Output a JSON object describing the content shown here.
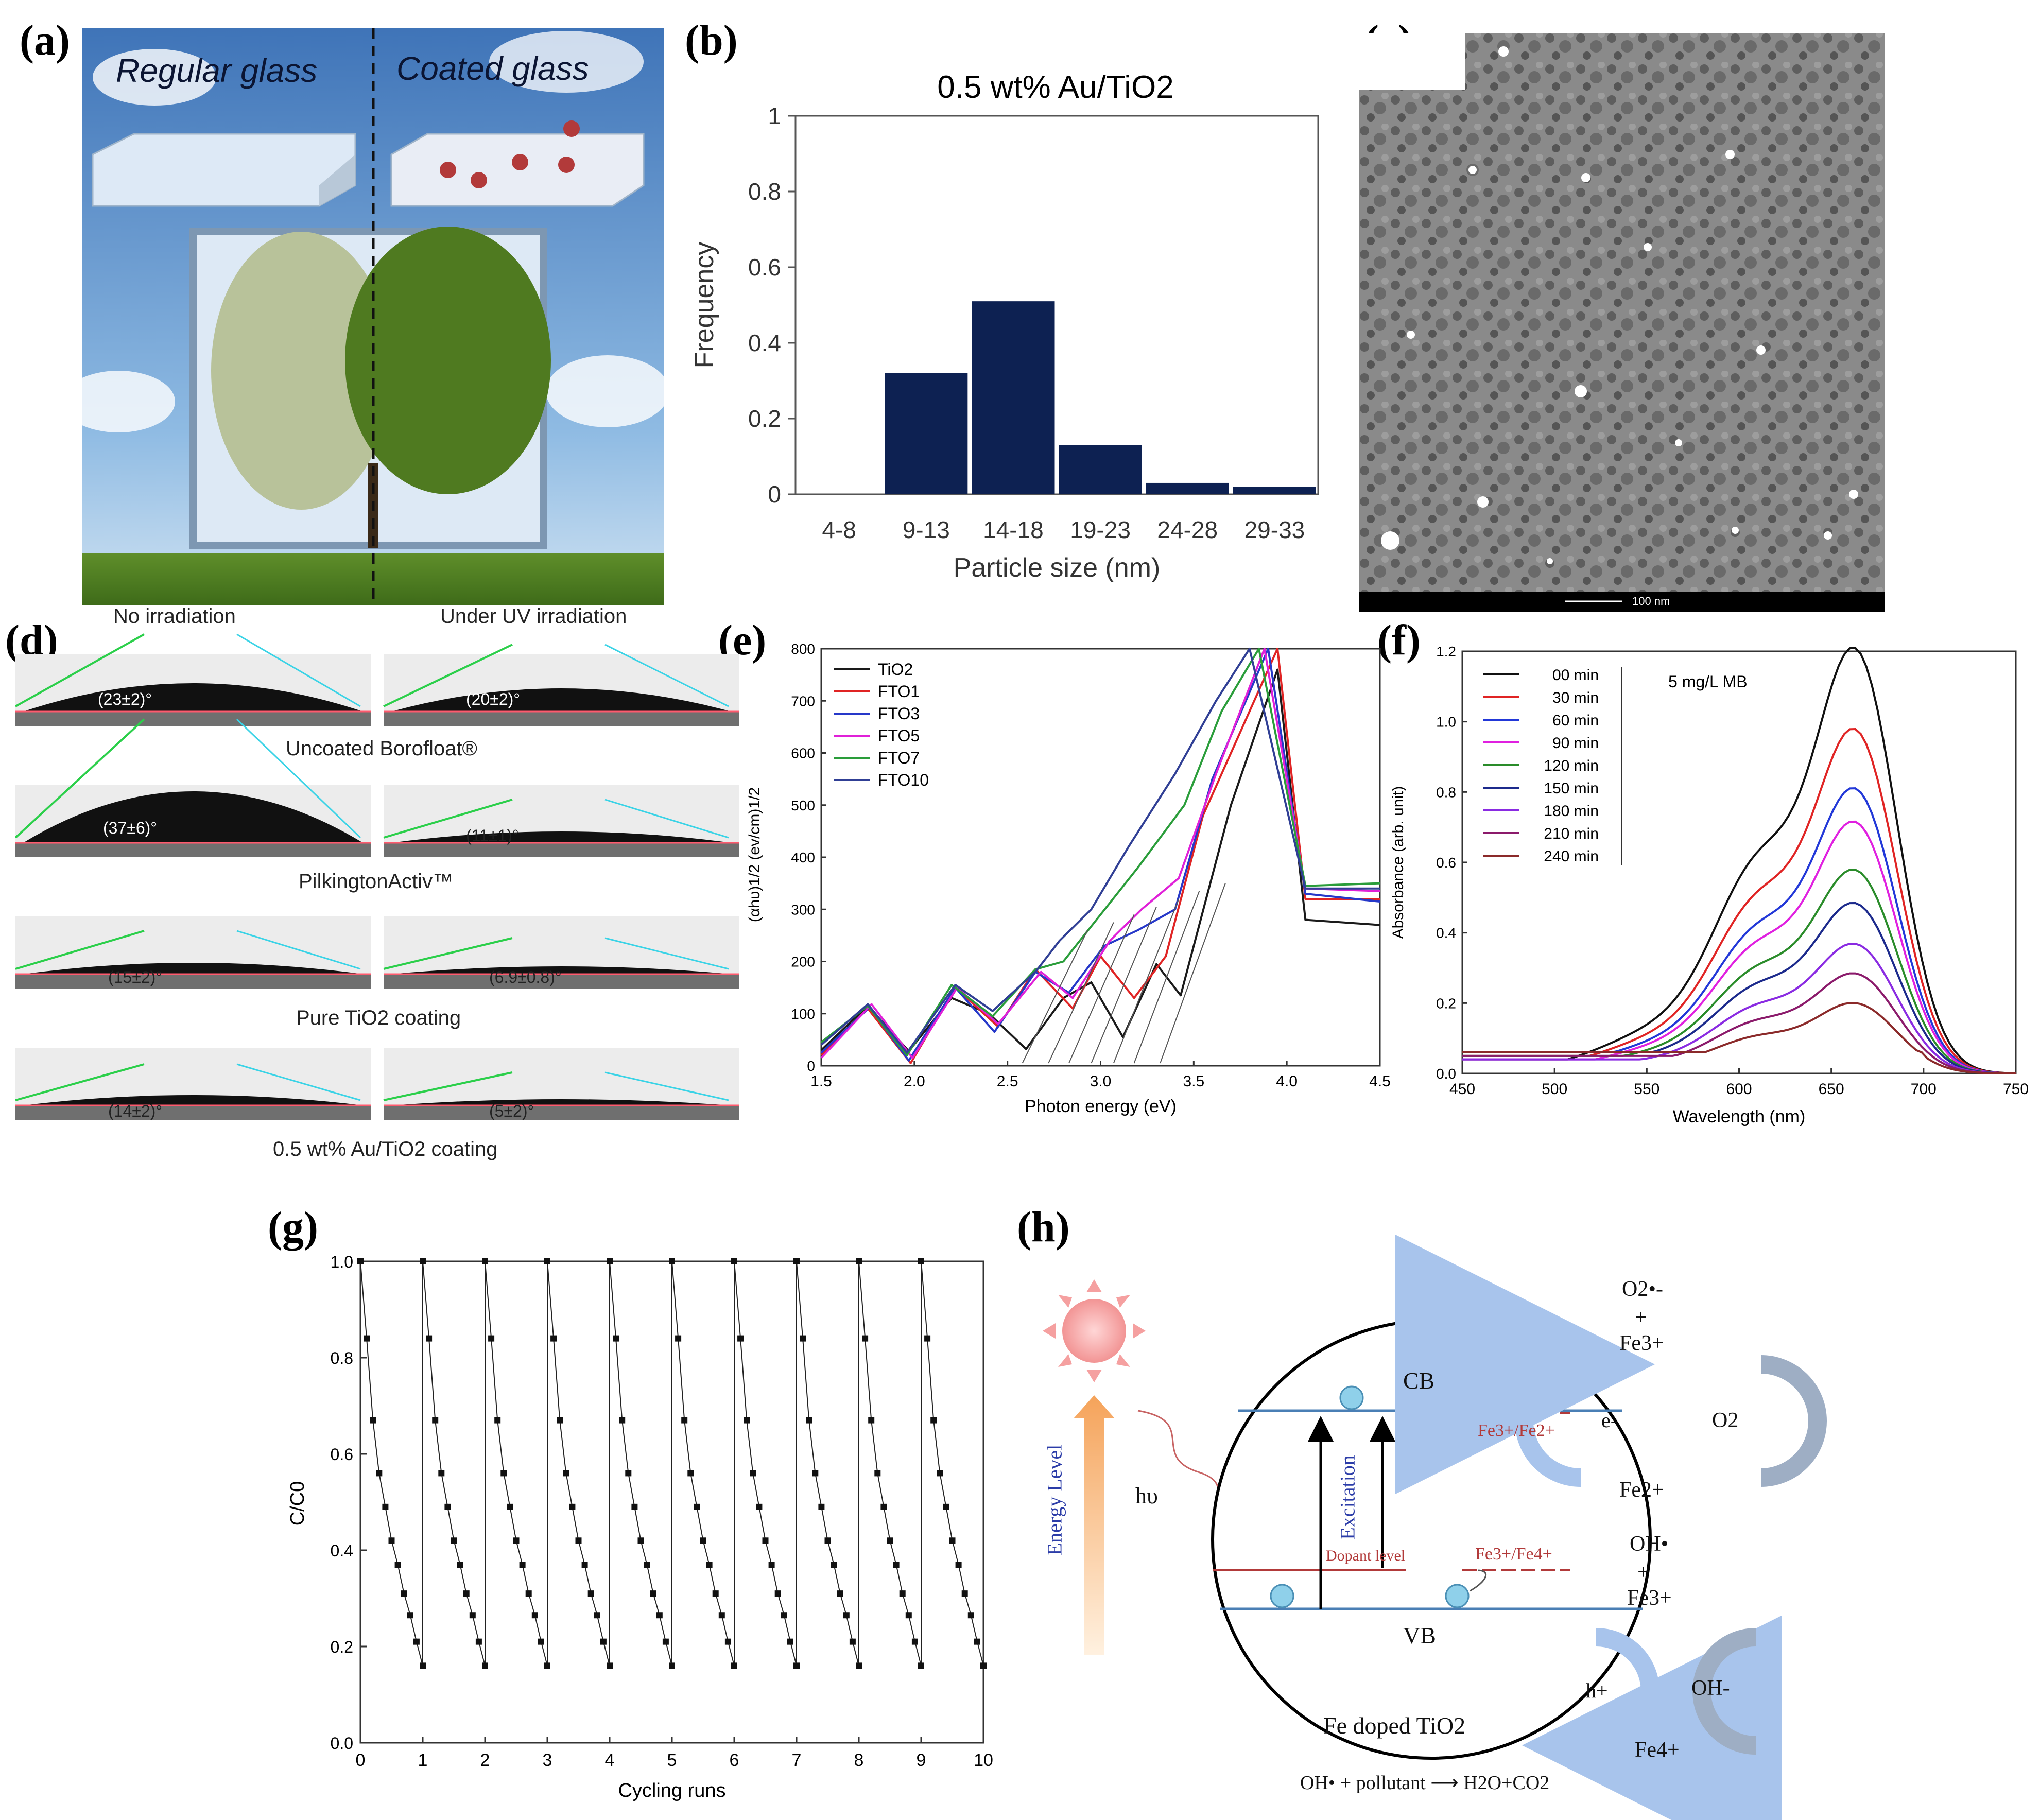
{
  "panels": {
    "a": "(a)",
    "b": "(b)",
    "c": "(c)",
    "d": "(d)",
    "e": "(e)",
    "f": "(f)",
    "g": "(g)",
    "h": "(h)"
  },
  "panel_a": {
    "left_title": "Regular glass",
    "right_title": "Coated glass"
  },
  "panel_c": {
    "scale_label": "100 nm"
  },
  "panel_d": {
    "col_no": "No irradiation",
    "col_uv": "Under UV irradiation",
    "rows": [
      {
        "label": "Uncoated Borofloat®",
        "no": "(23±2)°",
        "uv": "(20±2)°"
      },
      {
        "label": "PilkingtonActiv™",
        "no": "(37±6)°",
        "uv": "(11±1)°"
      },
      {
        "label": "Pure TiO2 coating",
        "no": "(15±2)°",
        "uv": "(6.9±0.8)°"
      },
      {
        "label": "0.5 wt% Au/TiO2 coating",
        "no": "(14±2)°",
        "uv": "(5±2)°"
      }
    ]
  },
  "panel_h": {
    "cb": "CB",
    "vb": "VB",
    "caption": "Fe doped TiO2",
    "equation": "OH• + pollutant ⟶ H2O+CO2",
    "energy": "Energy Level",
    "hv": "hυ",
    "excitation": "Excitation",
    "dopant": "Dopant level",
    "fe32": "Fe3+/Fe2+",
    "fe34": "Fe3+/Fe4+",
    "eminus": "e-",
    "hplus": "h+",
    "o2rad": "O2•-",
    "plus": "+",
    "fe3": "Fe3+",
    "fe2": "Fe2+",
    "fe4": "Fe4+",
    "o2": "O2",
    "ohrad": "OH•",
    "ohminus": "OH-"
  },
  "chart_data": [
    {
      "id": "b",
      "type": "bar",
      "title": "0.5 wt% Au/TiO2",
      "xlabel": "Particle size (nm)",
      "ylabel": "Frequency",
      "categories": [
        "4-8",
        "9-13",
        "14-18",
        "19-23",
        "24-28",
        "29-33"
      ],
      "values": [
        0,
        0.32,
        0.51,
        0.13,
        0.03,
        0.02
      ],
      "ylim": [
        0,
        1
      ],
      "yticks": [
        "0",
        "0.2",
        "0.4",
        "0.6",
        "0.8",
        "1"
      ],
      "color": "#0d2152"
    },
    {
      "id": "e",
      "type": "line",
      "xlabel": "Photon energy (eV)",
      "ylabel": "(αhυ)1/2 (ev/cm)1/2",
      "xlim": [
        1.5,
        4.5
      ],
      "ylim": [
        0,
        800
      ],
      "xticks": [
        "1.5",
        "2.0",
        "2.5",
        "3.0",
        "3.5",
        "4.0",
        "4.5"
      ],
      "yticks": [
        "0",
        "100",
        "200",
        "300",
        "400",
        "500",
        "600",
        "700",
        "800"
      ],
      "series": [
        {
          "name": "TiO2",
          "color": "#1a1a1a",
          "points": [
            [
              1.5,
              30
            ],
            [
              1.75,
              115
            ],
            [
              1.97,
              28
            ],
            [
              2.2,
              130
            ],
            [
              2.4,
              100
            ],
            [
              2.6,
              32
            ],
            [
              2.8,
              130
            ],
            [
              2.95,
              160
            ],
            [
              3.12,
              55
            ],
            [
              3.3,
              195
            ],
            [
              3.43,
              135
            ],
            [
              3.7,
              500
            ],
            [
              3.95,
              760
            ],
            [
              4.1,
              280
            ],
            [
              4.5,
              270
            ]
          ]
        },
        {
          "name": "FTO1",
          "color": "#e02424",
          "points": [
            [
              1.5,
              20
            ],
            [
              1.75,
              110
            ],
            [
              1.98,
              5
            ],
            [
              2.22,
              150
            ],
            [
              2.45,
              75
            ],
            [
              2.65,
              185
            ],
            [
              2.85,
              110
            ],
            [
              3.0,
              210
            ],
            [
              3.18,
              130
            ],
            [
              3.35,
              210
            ],
            [
              3.55,
              480
            ],
            [
              3.95,
              800
            ],
            [
              4.1,
              320
            ],
            [
              4.5,
              320
            ]
          ]
        },
        {
          "name": "FTO3",
          "color": "#2638c9",
          "points": [
            [
              1.5,
              25
            ],
            [
              1.76,
              112
            ],
            [
              1.97,
              10
            ],
            [
              2.22,
              150
            ],
            [
              2.43,
              65
            ],
            [
              2.65,
              180
            ],
            [
              2.83,
              140
            ],
            [
              3.02,
              230
            ],
            [
              3.2,
              260
            ],
            [
              3.4,
              300
            ],
            [
              3.6,
              550
            ],
            [
              3.9,
              800
            ],
            [
              4.1,
              330
            ],
            [
              4.5,
              315
            ]
          ]
        },
        {
          "name": "FTO5",
          "color": "#e020d8",
          "points": [
            [
              1.5,
              15
            ],
            [
              1.77,
              118
            ],
            [
              1.99,
              15
            ],
            [
              2.23,
              150
            ],
            [
              2.45,
              80
            ],
            [
              2.68,
              180
            ],
            [
              2.85,
              130
            ],
            [
              3.05,
              240
            ],
            [
              3.22,
              300
            ],
            [
              3.42,
              360
            ],
            [
              3.62,
              560
            ],
            [
              3.88,
              800
            ],
            [
              4.1,
              340
            ],
            [
              4.5,
              335
            ]
          ]
        },
        {
          "name": "FTO7",
          "color": "#2a9d3a",
          "points": [
            [
              1.5,
              45
            ],
            [
              1.75,
              115
            ],
            [
              1.96,
              20
            ],
            [
              2.2,
              155
            ],
            [
              2.42,
              95
            ],
            [
              2.65,
              185
            ],
            [
              2.8,
              200
            ],
            [
              3.0,
              290
            ],
            [
              3.2,
              380
            ],
            [
              3.45,
              500
            ],
            [
              3.65,
              680
            ],
            [
              3.85,
              800
            ],
            [
              4.1,
              345
            ],
            [
              4.5,
              350
            ]
          ]
        },
        {
          "name": "FTO10",
          "color": "#303f95",
          "points": [
            [
              1.5,
              40
            ],
            [
              1.75,
              118
            ],
            [
              1.96,
              25
            ],
            [
              2.22,
              155
            ],
            [
              2.42,
              105
            ],
            [
              2.65,
              180
            ],
            [
              2.78,
              240
            ],
            [
              2.95,
              300
            ],
            [
              3.15,
              420
            ],
            [
              3.4,
              560
            ],
            [
              3.62,
              700
            ],
            [
              3.8,
              800
            ],
            [
              4.1,
              340
            ],
            [
              4.5,
              340
            ]
          ]
        }
      ]
    },
    {
      "id": "f",
      "type": "line",
      "xlabel": "Wavelength (nm)",
      "ylabel": "Absorbance (arb. unit)",
      "annotation": "5 mg/L MB",
      "xlim": [
        450,
        750
      ],
      "ylim": [
        0,
        1.2
      ],
      "xticks": [
        "450",
        "500",
        "550",
        "600",
        "650",
        "700",
        "750"
      ],
      "yticks": [
        "0.0",
        "0.2",
        "0.4",
        "0.6",
        "0.8",
        "1.0",
        "1.2"
      ],
      "series": [
        {
          "name": "00 min",
          "color": "#111111",
          "shoulder": 0.63,
          "peak": 1.15
        },
        {
          "name": "30 min",
          "color": "#e02424",
          "shoulder": 0.52,
          "peak": 0.93
        },
        {
          "name": "60 min",
          "color": "#2238d8",
          "shoulder": 0.43,
          "peak": 0.77
        },
        {
          "name": "90 min",
          "color": "#e020e0",
          "shoulder": 0.38,
          "peak": 0.68
        },
        {
          "name": "120 min",
          "color": "#2a8c2a",
          "shoulder": 0.31,
          "peak": 0.55
        },
        {
          "name": "150 min",
          "color": "#1c2a8c",
          "shoulder": 0.26,
          "peak": 0.46
        },
        {
          "name": "180 min",
          "color": "#8a2be2",
          "shoulder": 0.2,
          "peak": 0.35
        },
        {
          "name": "210 min",
          "color": "#8b1a6b",
          "shoulder": 0.155,
          "peak": 0.27
        },
        {
          "name": "240 min",
          "color": "#8b2a2a",
          "shoulder": 0.11,
          "peak": 0.19
        }
      ]
    },
    {
      "id": "g",
      "type": "line",
      "xlabel": "Cycling runs",
      "ylabel": "C/C0",
      "xlim": [
        0,
        10
      ],
      "ylim": [
        0,
        1.0
      ],
      "xticks": [
        "0",
        "1",
        "2",
        "3",
        "4",
        "5",
        "6",
        "7",
        "8",
        "9",
        "10"
      ],
      "yticks": [
        "0.0",
        "0.2",
        "0.4",
        "0.6",
        "0.8",
        "1.0"
      ],
      "cycle_values": [
        1.0,
        0.84,
        0.67,
        0.56,
        0.49,
        0.42,
        0.37,
        0.31,
        0.265,
        0.21,
        0.16
      ]
    }
  ]
}
